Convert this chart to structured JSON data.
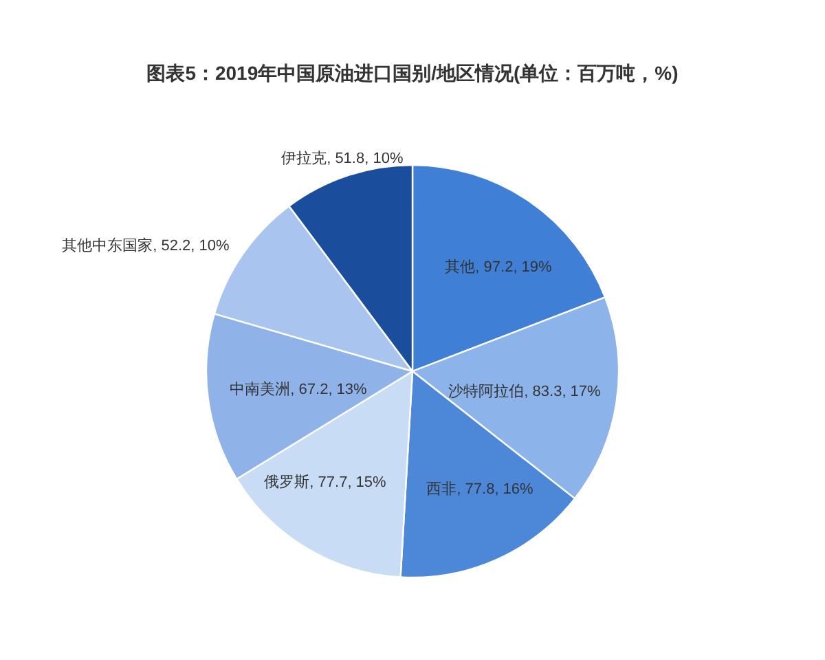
{
  "chart_data": {
    "type": "pie",
    "title": "图表5：2019年中国原油进口国别/地区情况(单位：百万吨，%)",
    "categories": [
      "其他",
      "沙特阿拉伯",
      "西非",
      "俄罗斯",
      "中南美洲",
      "其他中东国家",
      "伊拉克"
    ],
    "values": [
      97.2,
      83.3,
      77.8,
      77.7,
      67.2,
      52.2,
      51.8
    ],
    "value_labels": [
      "97.2, 19%",
      "83.3, 17%",
      "77.8, 16%",
      "77.7, 15%",
      "67.2, 13%",
      "52.2, 10%",
      "51.8, 10%"
    ],
    "colors": [
      "#3f7fd6",
      "#8db4ea",
      "#4d88d8",
      "#c9dcf5",
      "#8fb3e8",
      "#a9c4ee",
      "#1a4e9c"
    ]
  }
}
